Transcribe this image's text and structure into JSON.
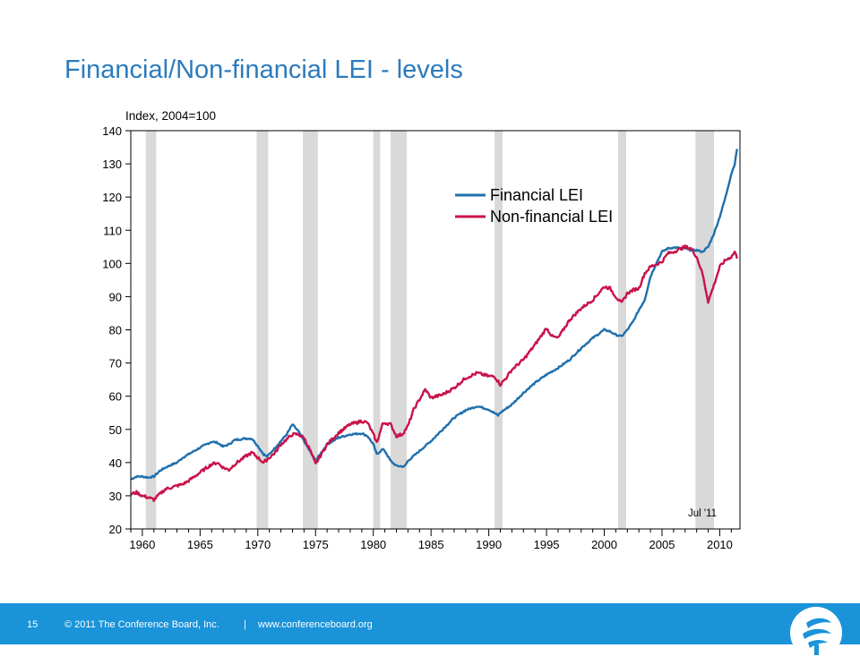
{
  "slide": {
    "title": "Financial/Non-financial LEI - levels",
    "page_number": "15",
    "copyright": "© 2011 The Conference Board, Inc.",
    "separator": "|",
    "website": "www.conferenceboard.org",
    "logo_icon": "conference-board-torch-logo",
    "footer_color": "#1a93d9",
    "title_color": "#2b7bbd"
  },
  "chart_data": {
    "type": "line",
    "ylabel": "Index, 2004=100",
    "xlim": [
      1959,
      2011.75
    ],
    "ylim": [
      20,
      140
    ],
    "y_ticks": [
      20,
      30,
      40,
      50,
      60,
      70,
      80,
      90,
      100,
      110,
      120,
      130,
      140
    ],
    "x_ticks": [
      1960,
      1965,
      1970,
      1975,
      1980,
      1985,
      1990,
      1995,
      2000,
      2005,
      2010
    ],
    "legend_position": "top-right",
    "annotation": "Jul '11",
    "recessions": [
      [
        1960.3,
        1961.2
      ],
      [
        1969.9,
        1970.9
      ],
      [
        1973.9,
        1975.2
      ],
      [
        1980.0,
        1980.6
      ],
      [
        1981.5,
        1982.9
      ],
      [
        1990.5,
        1991.2
      ],
      [
        2001.2,
        2001.9
      ],
      [
        2007.9,
        2009.5
      ]
    ],
    "series": [
      {
        "name": "Financial LEI",
        "color": "#1f6fad",
        "points": [
          [
            1959.0,
            35
          ],
          [
            1959.5,
            35.8
          ],
          [
            1960.0,
            35.8
          ],
          [
            1960.5,
            35.5
          ],
          [
            1961.0,
            35.8
          ],
          [
            1961.5,
            37.5
          ],
          [
            1962.0,
            38.5
          ],
          [
            1962.5,
            39.3
          ],
          [
            1963.0,
            40
          ],
          [
            1963.5,
            41.5
          ],
          [
            1964.0,
            42.5
          ],
          [
            1965.0,
            44.5
          ],
          [
            1966.0,
            46.3
          ],
          [
            1966.5,
            46
          ],
          [
            1967.0,
            44.8
          ],
          [
            1967.5,
            45.5
          ],
          [
            1968.0,
            46.8
          ],
          [
            1969.0,
            47.3
          ],
          [
            1969.5,
            47.2
          ],
          [
            1970.0,
            45
          ],
          [
            1970.5,
            42.5
          ],
          [
            1970.8,
            41.8
          ],
          [
            1971.0,
            42.5
          ],
          [
            1971.5,
            44.5
          ],
          [
            1972.0,
            46.5
          ],
          [
            1972.5,
            48.5
          ],
          [
            1973.0,
            51.5
          ],
          [
            1973.5,
            49.5
          ],
          [
            1974.0,
            46.5
          ],
          [
            1974.5,
            43.5
          ],
          [
            1975.0,
            40.5
          ],
          [
            1975.5,
            43
          ],
          [
            1976.0,
            45.5
          ],
          [
            1977.0,
            47.5
          ],
          [
            1978.0,
            48.5
          ],
          [
            1979.0,
            48.8
          ],
          [
            1979.5,
            48
          ],
          [
            1980.0,
            45.5
          ],
          [
            1980.3,
            42.5
          ],
          [
            1980.8,
            44
          ],
          [
            1981.0,
            43.5
          ],
          [
            1981.5,
            40.5
          ],
          [
            1982.0,
            39
          ],
          [
            1982.7,
            38.8
          ],
          [
            1983.0,
            40.5
          ],
          [
            1984.0,
            43.5
          ],
          [
            1985.0,
            46.5
          ],
          [
            1986.0,
            50
          ],
          [
            1987.0,
            53.5
          ],
          [
            1988.0,
            55.8
          ],
          [
            1989.0,
            57
          ],
          [
            1990.0,
            56
          ],
          [
            1990.8,
            54.2
          ],
          [
            1991.0,
            55
          ],
          [
            1992.0,
            57.5
          ],
          [
            1993.0,
            61
          ],
          [
            1994.0,
            64
          ],
          [
            1995.0,
            66.5
          ],
          [
            1996.0,
            68.5
          ],
          [
            1997.0,
            71
          ],
          [
            1998.0,
            74.5
          ],
          [
            1999.0,
            77.5
          ],
          [
            2000.0,
            80
          ],
          [
            2000.5,
            79.5
          ],
          [
            2001.0,
            78.5
          ],
          [
            2001.5,
            78
          ],
          [
            2002.0,
            80
          ],
          [
            2002.5,
            82.5
          ],
          [
            2003.0,
            86
          ],
          [
            2003.5,
            89
          ],
          [
            2004.0,
            96
          ],
          [
            2004.5,
            100
          ],
          [
            2005.0,
            103.5
          ],
          [
            2005.5,
            104.5
          ],
          [
            2006.0,
            104.8
          ],
          [
            2007.0,
            104.5
          ],
          [
            2007.5,
            104
          ],
          [
            2008.0,
            104
          ],
          [
            2008.5,
            103.5
          ],
          [
            2009.0,
            105
          ],
          [
            2009.5,
            109
          ],
          [
            2010.0,
            114
          ],
          [
            2010.5,
            120
          ],
          [
            2011.0,
            127
          ],
          [
            2011.3,
            130
          ],
          [
            2011.5,
            134.5
          ]
        ]
      },
      {
        "name": "Non-financial LEI",
        "color": "#c8134a",
        "points": [
          [
            1959.0,
            30.5
          ],
          [
            1959.5,
            31
          ],
          [
            1960.0,
            30
          ],
          [
            1960.5,
            29.5
          ],
          [
            1961.0,
            28.8
          ],
          [
            1961.5,
            30.5
          ],
          [
            1962.0,
            32
          ],
          [
            1962.5,
            32.5
          ],
          [
            1963.0,
            33
          ],
          [
            1963.5,
            33.5
          ],
          [
            1964.0,
            34.5
          ],
          [
            1965.0,
            37
          ],
          [
            1966.0,
            39.5
          ],
          [
            1966.5,
            40
          ],
          [
            1967.0,
            38.5
          ],
          [
            1967.5,
            37.8
          ],
          [
            1968.0,
            39.5
          ],
          [
            1969.0,
            42
          ],
          [
            1969.5,
            43
          ],
          [
            1970.0,
            41.5
          ],
          [
            1970.5,
            40
          ],
          [
            1971.0,
            41.5
          ],
          [
            1971.5,
            43
          ],
          [
            1972.0,
            45.5
          ],
          [
            1972.5,
            47
          ],
          [
            1973.0,
            48.5
          ],
          [
            1973.5,
            48.5
          ],
          [
            1974.0,
            47.5
          ],
          [
            1974.5,
            44
          ],
          [
            1975.0,
            39.5
          ],
          [
            1975.5,
            42.5
          ],
          [
            1976.0,
            45.5
          ],
          [
            1977.0,
            49
          ],
          [
            1978.0,
            51.5
          ],
          [
            1979.0,
            52.5
          ],
          [
            1979.5,
            52
          ],
          [
            1980.0,
            48.5
          ],
          [
            1980.3,
            46
          ],
          [
            1980.8,
            51.5
          ],
          [
            1981.0,
            52
          ],
          [
            1981.5,
            51.5
          ],
          [
            1982.0,
            48
          ],
          [
            1982.5,
            48.5
          ],
          [
            1983.0,
            51
          ],
          [
            1983.5,
            56
          ],
          [
            1984.0,
            59
          ],
          [
            1984.5,
            62
          ],
          [
            1985.0,
            59.5
          ],
          [
            1986.0,
            60.5
          ],
          [
            1987.0,
            62.5
          ],
          [
            1988.0,
            65.5
          ],
          [
            1989.0,
            67
          ],
          [
            1990.0,
            66
          ],
          [
            1990.5,
            66
          ],
          [
            1991.0,
            63.5
          ],
          [
            1991.5,
            65.5
          ],
          [
            1992.0,
            68
          ],
          [
            1993.0,
            71
          ],
          [
            1994.0,
            75.5
          ],
          [
            1995.0,
            80.5
          ],
          [
            1995.5,
            78
          ],
          [
            1996.0,
            77.5
          ],
          [
            1997.0,
            83
          ],
          [
            1998.0,
            86.5
          ],
          [
            1999.0,
            89
          ],
          [
            2000.0,
            93
          ],
          [
            2000.5,
            92.5
          ],
          [
            2001.0,
            90
          ],
          [
            2001.5,
            88
          ],
          [
            2002.0,
            91
          ],
          [
            2002.5,
            92
          ],
          [
            2003.0,
            92.5
          ],
          [
            2003.5,
            97
          ],
          [
            2004.0,
            99
          ],
          [
            2005.0,
            100.5
          ],
          [
            2005.5,
            103
          ],
          [
            2006.0,
            103.5
          ],
          [
            2007.0,
            105
          ],
          [
            2007.5,
            104.5
          ],
          [
            2008.0,
            102
          ],
          [
            2008.5,
            97
          ],
          [
            2009.0,
            88.5
          ],
          [
            2009.5,
            93.5
          ],
          [
            2010.0,
            99
          ],
          [
            2010.5,
            101
          ],
          [
            2011.0,
            102
          ],
          [
            2011.3,
            103.5
          ],
          [
            2011.5,
            101.5
          ]
        ]
      }
    ]
  }
}
